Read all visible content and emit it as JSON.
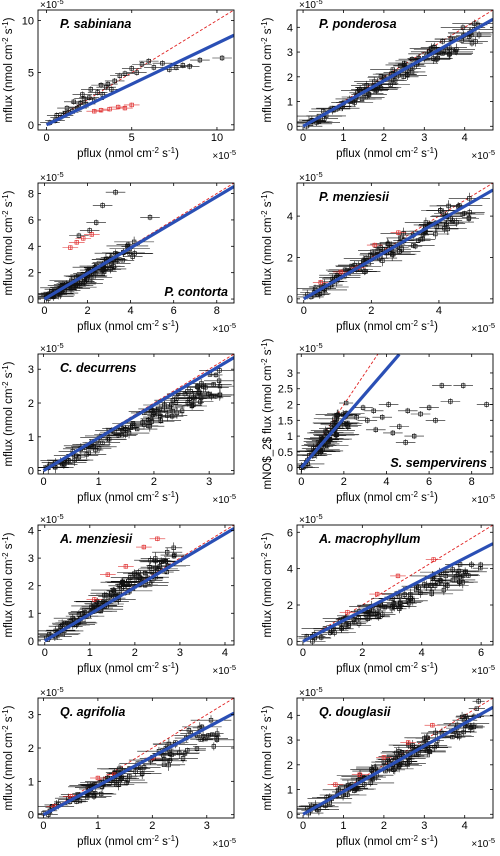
{
  "figure": {
    "colors": {
      "regression": "#2a4fb5",
      "one_to_one": "#e02020",
      "points": "#111111",
      "highlight": "#e03030",
      "axis": "#000000"
    },
    "chart_data": [
      {
        "type": "scatter",
        "title": "P. sabiniana",
        "title_pos": "top-left",
        "xlabel": "pflux (nmol cm$^{-2}$ s$^{-1}$)",
        "ylabel": "mflux (nmol cm$^{-2}$ s$^{-1}$)",
        "xlim": [
          -0.5,
          11
        ],
        "ylim": [
          -0.5,
          11
        ],
        "xticks": [
          0,
          5,
          10
        ],
        "yticks": [
          0,
          5,
          10
        ],
        "exponent": "×10",
        "exponent_power": "-5",
        "regression_slope": 0.78,
        "regression_x_end": 11,
        "one_to_one": true,
        "points": [
          [
            0.2,
            0.2
          ],
          [
            0.5,
            0.4
          ],
          [
            0.8,
            0.7
          ],
          [
            1,
            0.9
          ],
          [
            1.3,
            1.2
          ],
          [
            1.5,
            1.3
          ],
          [
            1.8,
            1.6
          ],
          [
            2,
            2.1
          ],
          [
            2.3,
            2
          ],
          [
            2.5,
            2.6
          ],
          [
            2.8,
            2.4
          ],
          [
            3,
            3.1
          ],
          [
            3.3,
            2.9
          ],
          [
            3.5,
            3.6
          ],
          [
            3.8,
            3.4
          ],
          [
            4,
            4.2
          ],
          [
            4.3,
            4.7
          ],
          [
            4.6,
            4.9
          ],
          [
            5,
            5.4
          ],
          [
            5.3,
            5
          ],
          [
            5.6,
            5.8
          ],
          [
            6,
            6.1
          ],
          [
            6.3,
            5.5
          ],
          [
            6.8,
            5.9
          ],
          [
            7.2,
            5.3
          ],
          [
            7.6,
            5.5
          ],
          [
            8,
            5.7
          ],
          [
            8.4,
            5.6
          ],
          [
            9,
            6.2
          ],
          [
            10.3,
            6.4
          ],
          [
            1.2,
            1.6
          ],
          [
            1.6,
            2.2
          ],
          [
            2.1,
            2.9
          ],
          [
            2.6,
            3.4
          ],
          [
            3.2,
            3.8
          ],
          [
            0.6,
            0.9
          ],
          [
            1.1,
            1.1
          ],
          [
            1.9,
            1.7
          ],
          [
            2.2,
            2.5
          ],
          [
            3.6,
            3.9
          ]
        ],
        "highlight_points": [
          [
            3.2,
            1.4
          ],
          [
            3.7,
            1.5
          ],
          [
            4.2,
            1.7
          ],
          [
            4.6,
            1.6
          ],
          [
            5,
            1.9
          ],
          [
            2.8,
            1.3
          ]
        ]
      },
      {
        "type": "scatter",
        "title": "P. ponderosa",
        "title_pos": "top-left",
        "xlabel": "pflux (nmol cm$^{-2}$ s$^{-1}$)",
        "ylabel": "mflux (nmol cm$^{-2}$ s$^{-1}$)",
        "xlim": [
          -0.15,
          4.7
        ],
        "ylim": [
          -0.15,
          4.7
        ],
        "xticks": [
          0,
          1,
          2,
          3,
          4
        ],
        "yticks": [
          0,
          1,
          2,
          3,
          4
        ],
        "exponent": "×10",
        "exponent_power": "-5",
        "regression_slope": 0.92,
        "regression_x_end": 4.7,
        "one_to_one": true,
        "cloud": {
          "n": 110,
          "xmax": 4.4,
          "slope": 0.9,
          "noise": 0.35,
          "seed": 11
        },
        "highlight_points": []
      },
      {
        "type": "scatter",
        "title": "P. contorta",
        "title_pos": "bottom-right",
        "xlabel": "pflux (nmol cm$^{-2}$ s$^{-1}$)",
        "ylabel": "mflux (nmol cm$^{-2}$ s$^{-1}$)",
        "xlim": [
          -0.3,
          8.8
        ],
        "ylim": [
          -0.3,
          8.8
        ],
        "xticks": [
          0,
          2,
          4,
          6,
          8
        ],
        "yticks": [
          0,
          2,
          4,
          6,
          8
        ],
        "exponent": "×10",
        "exponent_power": "-5",
        "regression_slope": 0.97,
        "regression_x_end": 8.8,
        "one_to_one": true,
        "cloud": {
          "n": 95,
          "xmax": 4.2,
          "slope": 0.9,
          "noise": 0.5,
          "seed": 23
        },
        "points": [
          [
            3.3,
            8.1
          ],
          [
            2.7,
            7.1
          ],
          [
            4.9,
            6.2
          ],
          [
            2.4,
            5.8
          ],
          [
            2.1,
            5.2
          ],
          [
            1.6,
            4.8
          ]
        ],
        "highlight_points": [
          [
            1.2,
            3.9
          ],
          [
            1.5,
            4.3
          ],
          [
            1.8,
            4.6
          ],
          [
            2.2,
            4.9
          ]
        ]
      },
      {
        "type": "scatter",
        "title": "P. menziesii",
        "title_pos": "top-left",
        "xlabel": "pflux (nmol cm$^{-2}$ s$^{-1}$)",
        "ylabel": "mflux (nmol cm$^{-2}$ s$^{-1}$)",
        "xlim": [
          -0.2,
          5.6
        ],
        "ylim": [
          -0.2,
          5.6
        ],
        "xticks": [
          0,
          2,
          4
        ],
        "yticks": [
          0,
          2,
          4
        ],
        "exponent": "×10",
        "exponent_power": "-5",
        "regression_slope": 0.94,
        "regression_x_end": 5.6,
        "one_to_one": true,
        "cloud": {
          "n": 105,
          "xmax": 5.0,
          "slope": 0.92,
          "noise": 0.5,
          "seed": 37
        },
        "highlight_points": [
          [
            0.5,
            0.8
          ],
          [
            1.1,
            1.3
          ],
          [
            1.6,
            1.5
          ],
          [
            2.1,
            2.6
          ],
          [
            2.8,
            3.2
          ]
        ]
      },
      {
        "type": "scatter",
        "title": "C. decurrens",
        "title_pos": "top-left",
        "xlabel": "pflux (nmol cm$^{-2}$ s$^{-1}$)",
        "ylabel": "mflux (nmol cm$^{-2}$ s$^{-1}$)",
        "xlim": [
          -0.1,
          3.45
        ],
        "ylim": [
          -0.1,
          3.45
        ],
        "xticks": [
          0,
          1,
          2,
          3
        ],
        "yticks": [
          0,
          1,
          2,
          3
        ],
        "exponent": "×10",
        "exponent_power": "-5",
        "regression_slope": 0.97,
        "regression_x_end": 3.45,
        "one_to_one": true,
        "cloud": {
          "n": 120,
          "xmax": 3.2,
          "slope": 0.82,
          "noise": 0.3,
          "seed": 53
        },
        "highlight_points": []
      },
      {
        "type": "scatter",
        "title": "S. sempervirens",
        "title_pos": "bottom-right",
        "xlabel": "pflux (nmol cm$^{-2}$ s$^{-1}$)",
        "ylabel": "mNO$_2$ flux (nmol cm$^{-2}$ s$^{-1}$)",
        "xlim": [
          -0.2,
          9
        ],
        "ylim": [
          -0.2,
          3.6
        ],
        "xticks": [
          0,
          2,
          4,
          6,
          8
        ],
        "yticks": [
          0,
          0.5,
          1,
          1.5,
          2,
          2.5,
          3
        ],
        "exponent": "×10",
        "exponent_power": "-5",
        "regression_slope": 0.78,
        "regression_x_end": 4.6,
        "one_to_one": true,
        "cloud": {
          "n": 70,
          "xmax": 2.2,
          "slope": 0.8,
          "noise": 0.3,
          "seed": 71
        },
        "points": [
          [
            2.2,
            1.3
          ],
          [
            2.6,
            1.6
          ],
          [
            3.1,
            1.5
          ],
          [
            3.4,
            1.8
          ],
          [
            3.8,
            1.6
          ],
          [
            4.1,
            2
          ],
          [
            4.3,
            1.1
          ],
          [
            4.6,
            1.3
          ],
          [
            5,
            1.8
          ],
          [
            5.3,
            1
          ],
          [
            5.6,
            1.7
          ],
          [
            6,
            1.9
          ],
          [
            6.3,
            1.5
          ],
          [
            6.6,
            2.6
          ],
          [
            7,
            2.1
          ],
          [
            7.6,
            2.6
          ],
          [
            8.7,
            2
          ],
          [
            4.9,
            0.8
          ],
          [
            3.5,
            1.2
          ],
          [
            2.9,
            1.9
          ]
        ],
        "highlight_points": []
      },
      {
        "type": "scatter",
        "title": "A. menziesii",
        "title_pos": "top-left",
        "xlabel": "pflux (nmol cm$^{-2}$ s$^{-1}$)",
        "ylabel": "mflux (nmol cm$^{-2}$ s$^{-1}$)",
        "xlim": [
          -0.15,
          4.2
        ],
        "ylim": [
          -0.15,
          4.2
        ],
        "xticks": [
          0,
          1,
          2,
          3,
          4
        ],
        "yticks": [
          0,
          1,
          2,
          3,
          4
        ],
        "exponent": "×10",
        "exponent_power": "-5",
        "regression_slope": 0.97,
        "regression_x_end": 4.2,
        "one_to_one": true,
        "cloud": {
          "n": 115,
          "xmax": 2.9,
          "slope": 1.08,
          "noise": 0.35,
          "seed": 89
        },
        "highlight_points": [
          [
            1.4,
            2.4
          ],
          [
            1.8,
            2.7
          ],
          [
            2.2,
            3.4
          ],
          [
            2.5,
            3.7
          ],
          [
            1.1,
            1.5
          ]
        ]
      },
      {
        "type": "scatter",
        "title": "A. macrophyllum",
        "title_pos": "top-left",
        "xlabel": "pflux (nmol cm$^{-2}$ s$^{-1}$)",
        "ylabel": "mflux (nmol cm$^{-2}$ s$^{-1}$)",
        "xlim": [
          -0.2,
          6.4
        ],
        "ylim": [
          -0.2,
          6.4
        ],
        "xticks": [
          0,
          2,
          4,
          6
        ],
        "yticks": [
          0,
          2,
          4,
          6
        ],
        "exponent": "×10",
        "exponent_power": "-5",
        "regression_slope": 0.84,
        "regression_x_end": 6.4,
        "one_to_one": true,
        "cloud": {
          "n": 100,
          "xmax": 6.0,
          "slope": 0.7,
          "noise": 0.55,
          "seed": 101
        },
        "highlight_points": [
          [
            2.5,
            2.6
          ],
          [
            3.2,
            3.6
          ],
          [
            4.4,
            4.5
          ],
          [
            1.5,
            1.6
          ]
        ]
      },
      {
        "type": "scatter",
        "title": "Q. agrifolia",
        "title_pos": "top-left",
        "xlabel": "pflux (nmol cm$^{-2}$ s$^{-1}$)",
        "ylabel": "mflux (nmol cm$^{-2}$ s$^{-1}$)",
        "xlim": [
          -0.1,
          3.5
        ],
        "ylim": [
          -0.1,
          3.5
        ],
        "xticks": [
          0,
          1,
          2,
          3
        ],
        "yticks": [
          0,
          1,
          2,
          3
        ],
        "exponent": "×10",
        "exponent_power": "-5",
        "regression_slope": 0.87,
        "regression_x_end": 3.5,
        "one_to_one": true,
        "cloud": {
          "n": 95,
          "xmax": 3.2,
          "slope": 0.8,
          "noise": 0.35,
          "seed": 127
        },
        "highlight_points": [
          [
            0.2,
            0.25
          ],
          [
            0.5,
            0.55
          ],
          [
            1,
            1.1
          ],
          [
            1.3,
            1.2
          ],
          [
            2,
            1.7
          ]
        ]
      },
      {
        "type": "scatter",
        "title": "Q. douglasii",
        "title_pos": "top-left",
        "xlabel": "pflux (nmol cm$^{-2}$ s$^{-1}$)",
        "ylabel": "mflux (nmol cm$^{-2}$ s$^{-1}$)",
        "xlim": [
          -0.15,
          4.7
        ],
        "ylim": [
          -0.15,
          4.7
        ],
        "xticks": [
          0,
          1,
          2,
          3,
          4
        ],
        "yticks": [
          0,
          1,
          2,
          3,
          4
        ],
        "exponent": "×10",
        "exponent_power": "-5",
        "regression_slope": 0.92,
        "regression_x_end": 4.7,
        "one_to_one": true,
        "cloud": {
          "n": 115,
          "xmax": 4.4,
          "slope": 0.93,
          "noise": 0.4,
          "seed": 149
        },
        "highlight_points": [
          [
            0.8,
            1.2
          ],
          [
            1.4,
            1.6
          ],
          [
            2,
            2.3
          ],
          [
            2.6,
            2.9
          ],
          [
            3.2,
            3.6
          ]
        ]
      }
    ]
  }
}
